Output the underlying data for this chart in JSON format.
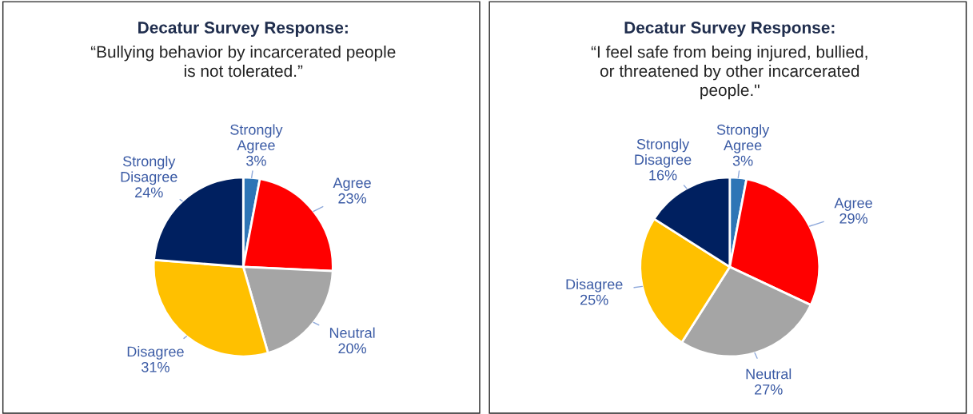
{
  "chart_data": [
    {
      "type": "pie",
      "title": "Decatur Survey Response:",
      "subtitle": "“Bullying behavior by incarcerated people\nis not tolerated.”",
      "categories": [
        "Strongly\nAgree",
        "Agree",
        "Neutral",
        "Disagree",
        "Strongly\nDisagree"
      ],
      "values": [
        3,
        23,
        20,
        31,
        24
      ],
      "value_labels": [
        "3%",
        "23%",
        "20%",
        "31%",
        "24%"
      ],
      "colors": [
        "#2e75b6",
        "#ff0000",
        "#a5a5a5",
        "#ffc000",
        "#002060"
      ],
      "legend": false
    },
    {
      "type": "pie",
      "title": "Decatur Survey Response:",
      "subtitle": "“I feel safe from being injured, bullied,\nor threatened by other incarcerated\npeople.\"",
      "categories": [
        "Strongly\nAgree",
        "Agree",
        "Neutral",
        "Disagree",
        "Strongly\nDisagree"
      ],
      "values": [
        3,
        29,
        27,
        25,
        16
      ],
      "value_labels": [
        "3%",
        "29%",
        "27%",
        "25%",
        "16%"
      ],
      "colors": [
        "#2e75b6",
        "#ff0000",
        "#a5a5a5",
        "#ffc000",
        "#002060"
      ],
      "legend": false
    }
  ]
}
